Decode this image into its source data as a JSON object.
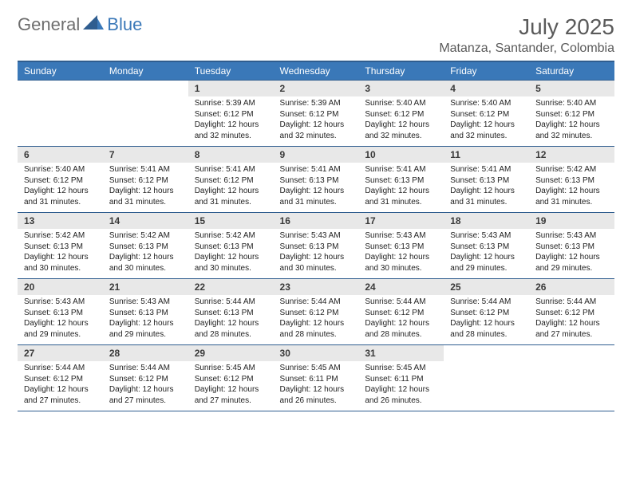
{
  "logo": {
    "general": "General",
    "blue": "Blue"
  },
  "title": {
    "month": "July 2025",
    "location": "Matanza, Santander, Colombia"
  },
  "colors": {
    "header_bg": "#3a78b8",
    "header_border": "#2f5d8f",
    "daynum_bg": "#e8e8e8",
    "logo_gray": "#6e6e6e",
    "logo_blue": "#3a78b8",
    "title_color": "#5a5a5a"
  },
  "daynames": [
    "Sunday",
    "Monday",
    "Tuesday",
    "Wednesday",
    "Thursday",
    "Friday",
    "Saturday"
  ],
  "weeks": [
    [
      {
        "n": "",
        "sr": "",
        "ss": "",
        "dl1": "",
        "dl2": ""
      },
      {
        "n": "",
        "sr": "",
        "ss": "",
        "dl1": "",
        "dl2": ""
      },
      {
        "n": "1",
        "sr": "Sunrise: 5:39 AM",
        "ss": "Sunset: 6:12 PM",
        "dl1": "Daylight: 12 hours",
        "dl2": "and 32 minutes."
      },
      {
        "n": "2",
        "sr": "Sunrise: 5:39 AM",
        "ss": "Sunset: 6:12 PM",
        "dl1": "Daylight: 12 hours",
        "dl2": "and 32 minutes."
      },
      {
        "n": "3",
        "sr": "Sunrise: 5:40 AM",
        "ss": "Sunset: 6:12 PM",
        "dl1": "Daylight: 12 hours",
        "dl2": "and 32 minutes."
      },
      {
        "n": "4",
        "sr": "Sunrise: 5:40 AM",
        "ss": "Sunset: 6:12 PM",
        "dl1": "Daylight: 12 hours",
        "dl2": "and 32 minutes."
      },
      {
        "n": "5",
        "sr": "Sunrise: 5:40 AM",
        "ss": "Sunset: 6:12 PM",
        "dl1": "Daylight: 12 hours",
        "dl2": "and 32 minutes."
      }
    ],
    [
      {
        "n": "6",
        "sr": "Sunrise: 5:40 AM",
        "ss": "Sunset: 6:12 PM",
        "dl1": "Daylight: 12 hours",
        "dl2": "and 31 minutes."
      },
      {
        "n": "7",
        "sr": "Sunrise: 5:41 AM",
        "ss": "Sunset: 6:12 PM",
        "dl1": "Daylight: 12 hours",
        "dl2": "and 31 minutes."
      },
      {
        "n": "8",
        "sr": "Sunrise: 5:41 AM",
        "ss": "Sunset: 6:12 PM",
        "dl1": "Daylight: 12 hours",
        "dl2": "and 31 minutes."
      },
      {
        "n": "9",
        "sr": "Sunrise: 5:41 AM",
        "ss": "Sunset: 6:13 PM",
        "dl1": "Daylight: 12 hours",
        "dl2": "and 31 minutes."
      },
      {
        "n": "10",
        "sr": "Sunrise: 5:41 AM",
        "ss": "Sunset: 6:13 PM",
        "dl1": "Daylight: 12 hours",
        "dl2": "and 31 minutes."
      },
      {
        "n": "11",
        "sr": "Sunrise: 5:41 AM",
        "ss": "Sunset: 6:13 PM",
        "dl1": "Daylight: 12 hours",
        "dl2": "and 31 minutes."
      },
      {
        "n": "12",
        "sr": "Sunrise: 5:42 AM",
        "ss": "Sunset: 6:13 PM",
        "dl1": "Daylight: 12 hours",
        "dl2": "and 31 minutes."
      }
    ],
    [
      {
        "n": "13",
        "sr": "Sunrise: 5:42 AM",
        "ss": "Sunset: 6:13 PM",
        "dl1": "Daylight: 12 hours",
        "dl2": "and 30 minutes."
      },
      {
        "n": "14",
        "sr": "Sunrise: 5:42 AM",
        "ss": "Sunset: 6:13 PM",
        "dl1": "Daylight: 12 hours",
        "dl2": "and 30 minutes."
      },
      {
        "n": "15",
        "sr": "Sunrise: 5:42 AM",
        "ss": "Sunset: 6:13 PM",
        "dl1": "Daylight: 12 hours",
        "dl2": "and 30 minutes."
      },
      {
        "n": "16",
        "sr": "Sunrise: 5:43 AM",
        "ss": "Sunset: 6:13 PM",
        "dl1": "Daylight: 12 hours",
        "dl2": "and 30 minutes."
      },
      {
        "n": "17",
        "sr": "Sunrise: 5:43 AM",
        "ss": "Sunset: 6:13 PM",
        "dl1": "Daylight: 12 hours",
        "dl2": "and 30 minutes."
      },
      {
        "n": "18",
        "sr": "Sunrise: 5:43 AM",
        "ss": "Sunset: 6:13 PM",
        "dl1": "Daylight: 12 hours",
        "dl2": "and 29 minutes."
      },
      {
        "n": "19",
        "sr": "Sunrise: 5:43 AM",
        "ss": "Sunset: 6:13 PM",
        "dl1": "Daylight: 12 hours",
        "dl2": "and 29 minutes."
      }
    ],
    [
      {
        "n": "20",
        "sr": "Sunrise: 5:43 AM",
        "ss": "Sunset: 6:13 PM",
        "dl1": "Daylight: 12 hours",
        "dl2": "and 29 minutes."
      },
      {
        "n": "21",
        "sr": "Sunrise: 5:43 AM",
        "ss": "Sunset: 6:13 PM",
        "dl1": "Daylight: 12 hours",
        "dl2": "and 29 minutes."
      },
      {
        "n": "22",
        "sr": "Sunrise: 5:44 AM",
        "ss": "Sunset: 6:13 PM",
        "dl1": "Daylight: 12 hours",
        "dl2": "and 28 minutes."
      },
      {
        "n": "23",
        "sr": "Sunrise: 5:44 AM",
        "ss": "Sunset: 6:12 PM",
        "dl1": "Daylight: 12 hours",
        "dl2": "and 28 minutes."
      },
      {
        "n": "24",
        "sr": "Sunrise: 5:44 AM",
        "ss": "Sunset: 6:12 PM",
        "dl1": "Daylight: 12 hours",
        "dl2": "and 28 minutes."
      },
      {
        "n": "25",
        "sr": "Sunrise: 5:44 AM",
        "ss": "Sunset: 6:12 PM",
        "dl1": "Daylight: 12 hours",
        "dl2": "and 28 minutes."
      },
      {
        "n": "26",
        "sr": "Sunrise: 5:44 AM",
        "ss": "Sunset: 6:12 PM",
        "dl1": "Daylight: 12 hours",
        "dl2": "and 27 minutes."
      }
    ],
    [
      {
        "n": "27",
        "sr": "Sunrise: 5:44 AM",
        "ss": "Sunset: 6:12 PM",
        "dl1": "Daylight: 12 hours",
        "dl2": "and 27 minutes."
      },
      {
        "n": "28",
        "sr": "Sunrise: 5:44 AM",
        "ss": "Sunset: 6:12 PM",
        "dl1": "Daylight: 12 hours",
        "dl2": "and 27 minutes."
      },
      {
        "n": "29",
        "sr": "Sunrise: 5:45 AM",
        "ss": "Sunset: 6:12 PM",
        "dl1": "Daylight: 12 hours",
        "dl2": "and 27 minutes."
      },
      {
        "n": "30",
        "sr": "Sunrise: 5:45 AM",
        "ss": "Sunset: 6:11 PM",
        "dl1": "Daylight: 12 hours",
        "dl2": "and 26 minutes."
      },
      {
        "n": "31",
        "sr": "Sunrise: 5:45 AM",
        "ss": "Sunset: 6:11 PM",
        "dl1": "Daylight: 12 hours",
        "dl2": "and 26 minutes."
      },
      {
        "n": "",
        "sr": "",
        "ss": "",
        "dl1": "",
        "dl2": ""
      },
      {
        "n": "",
        "sr": "",
        "ss": "",
        "dl1": "",
        "dl2": ""
      }
    ]
  ]
}
